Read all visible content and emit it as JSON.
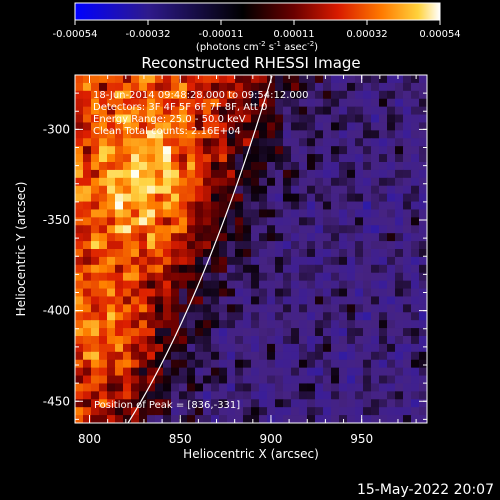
{
  "colorbar": {
    "ticks": [
      "-0.00054",
      "-0.00032",
      "-0.00011",
      "0.00011",
      "0.00032",
      "0.00054"
    ],
    "units_main": "(photons cm",
    "units_exp1": "-2",
    "units_mid": " s",
    "units_exp2": "-1",
    "units_tail": " asec",
    "units_exp3": "-2",
    "units_close": ")",
    "stops": [
      "#0000ff",
      "#2e1a8c",
      "#000000",
      "#6a0000",
      "#d81a00",
      "#ff7a00",
      "#ffd23c",
      "#ffffff"
    ]
  },
  "plot": {
    "title": "Reconstructed RHESSI Image",
    "xlabel": "Heliocentric X (arcsec)",
    "ylabel": "Heliocentric Y (arcsec)",
    "xticks": [
      "800",
      "850",
      "900",
      "950"
    ],
    "yticks": [
      "-300",
      "-350",
      "-400",
      "-450"
    ],
    "x_values": [
      800,
      850,
      900,
      950
    ],
    "y_values": [
      -300,
      -350,
      -400,
      -450
    ],
    "xlim": [
      792,
      986
    ],
    "ylim": [
      -462,
      -270
    ]
  },
  "annotations": {
    "line1": "18-Jun-2014 09:48:28.000 to 09:54:12.000",
    "line2": "Detectors: 3F 4F 5F 6F 7F 8F, Att 0",
    "line3": "Energy Range: 25.0 - 50.0 keV",
    "line4": "Clean     Total counts: 2.16E+04",
    "peak": "Position of Peak = [836,-331]"
  },
  "footer": {
    "date": "15-May-2022 20:07"
  }
}
